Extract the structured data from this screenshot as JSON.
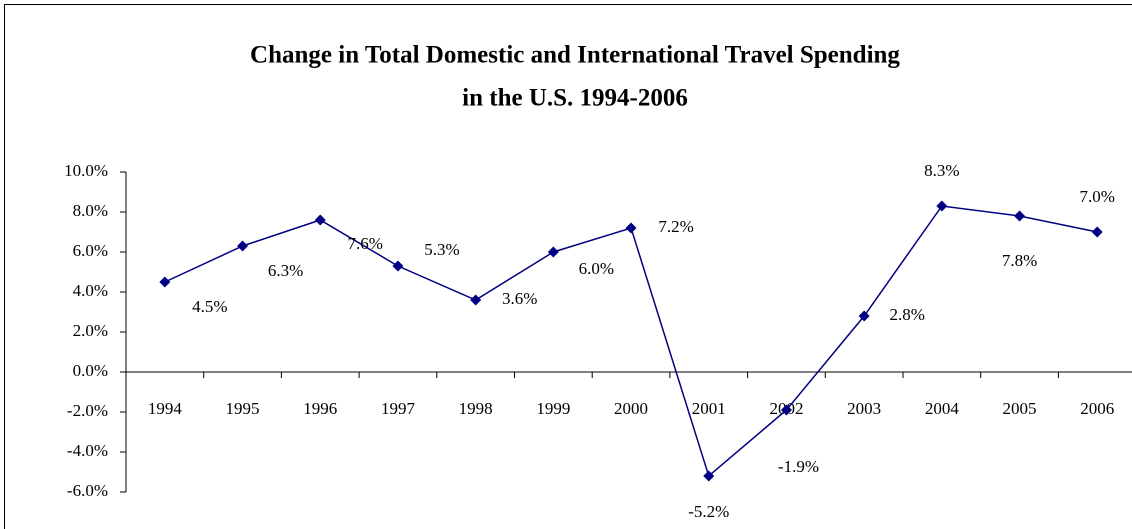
{
  "chart_data": {
    "type": "line",
    "title": [
      "Change in Total Domestic and International Travel Spending",
      "in the U.S. 1994-2006"
    ],
    "categories": [
      "1994",
      "1995",
      "1996",
      "1997",
      "1998",
      "1999",
      "2000",
      "2001",
      "2002",
      "2003",
      "2004",
      "2005",
      "2006"
    ],
    "series": [
      {
        "color": "#000080",
        "values": [
          4.5,
          6.3,
          7.6,
          5.3,
          3.6,
          6.0,
          7.2,
          -5.2,
          -1.9,
          2.8,
          8.3,
          7.8,
          7.0
        ],
        "value_labels": [
          "4.5%",
          "6.3%",
          "7.6%",
          "5.3%",
          "3.6%",
          "6.0%",
          "7.2%",
          "-5.2%",
          "-1.9%",
          "2.8%",
          "8.3%",
          "7.8%",
          "7.0%"
        ]
      }
    ],
    "ylim": [
      -6,
      10
    ],
    "yticks": [
      {
        "value": -6,
        "label": "-6.0%"
      },
      {
        "value": -4,
        "label": "-4.0%"
      },
      {
        "value": -2,
        "label": "-2.0%"
      },
      {
        "value": 0,
        "label": "0.0%"
      },
      {
        "value": 2,
        "label": "2.0%"
      },
      {
        "value": 4,
        "label": "4.0%"
      },
      {
        "value": 6,
        "label": "6.0%"
      },
      {
        "value": 8,
        "label": "8.0%"
      },
      {
        "value": 10,
        "label": "10.0%"
      }
    ],
    "grid": false
  }
}
